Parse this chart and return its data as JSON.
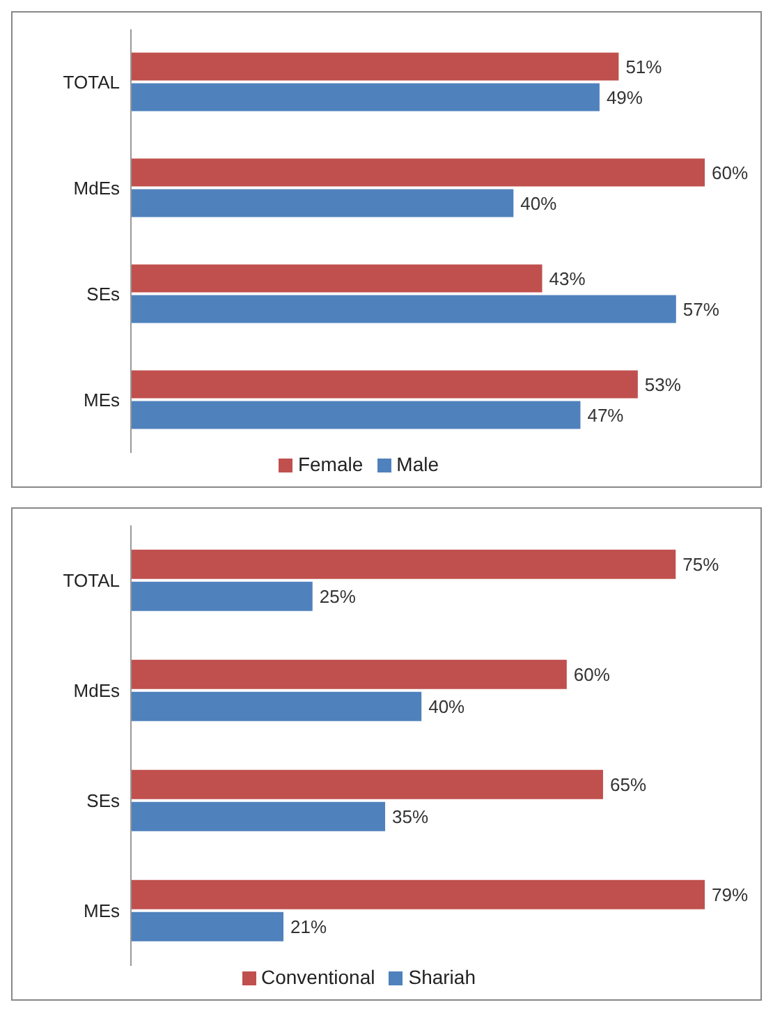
{
  "chart_data": [
    {
      "type": "bar",
      "orientation": "horizontal",
      "categories": [
        "TOTAL",
        "MdEs",
        "SEs",
        "MEs"
      ],
      "series": [
        {
          "name": "Female",
          "color": "#c0504d",
          "values": [
            51,
            60,
            43,
            53
          ],
          "value_labels": [
            "51%",
            "60%",
            "43%",
            "53%"
          ]
        },
        {
          "name": "Male",
          "color": "#4f81bd",
          "values": [
            49,
            40,
            57,
            47
          ],
          "value_labels": [
            "49%",
            "40%",
            "57%",
            "47%"
          ]
        }
      ],
      "legend": "bottom"
    },
    {
      "type": "bar",
      "orientation": "horizontal",
      "categories": [
        "TOTAL",
        "MdEs",
        "SEs",
        "MEs"
      ],
      "series": [
        {
          "name": "Conventional",
          "color": "#c0504d",
          "values": [
            75,
            60,
            65,
            79
          ],
          "value_labels": [
            "75%",
            "60%",
            "65%",
            "79%"
          ]
        },
        {
          "name": "Shariah",
          "color": "#4f81bd",
          "values": [
            25,
            40,
            35,
            21
          ],
          "value_labels": [
            "25%",
            "40%",
            "35%",
            "21%"
          ]
        }
      ],
      "legend": "bottom"
    }
  ]
}
